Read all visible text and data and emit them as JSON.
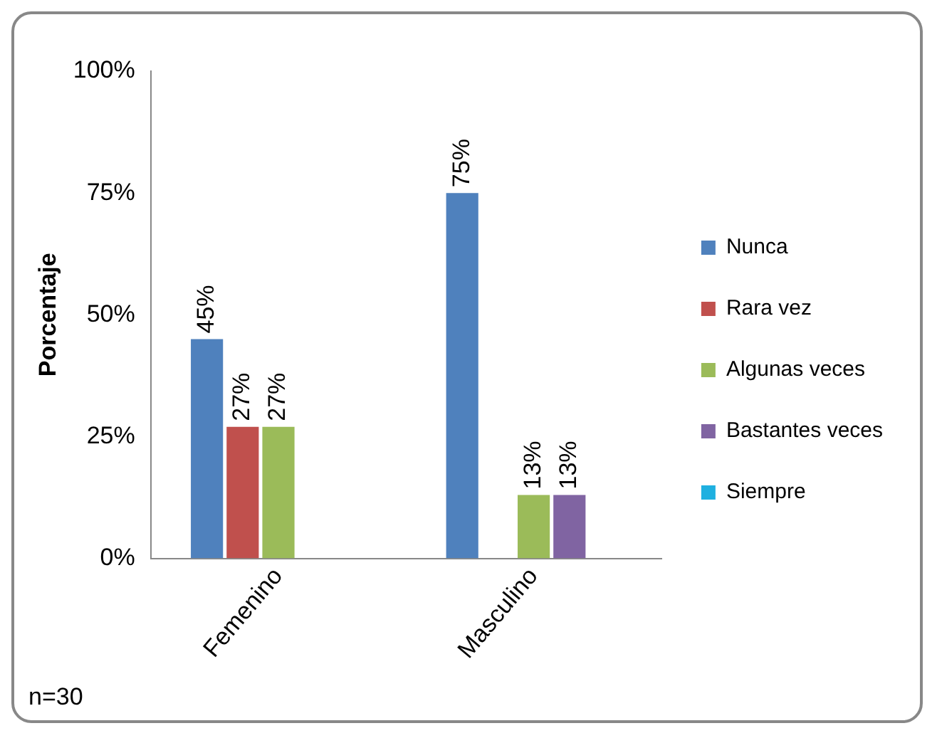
{
  "chart_data": {
    "type": "bar",
    "ylabel": "Porcentaje",
    "categories": [
      "Femenino",
      "Masculino"
    ],
    "series": [
      {
        "name": "Nunca",
        "color": "#4f81bd",
        "values": [
          45,
          75
        ],
        "value_labels": [
          "45%",
          "75%"
        ]
      },
      {
        "name": "Rara vez",
        "color": "#c0504d",
        "values": [
          27,
          0
        ],
        "value_labels": [
          "27%",
          null
        ]
      },
      {
        "name": "Algunas veces",
        "color": "#9bbb59",
        "values": [
          27,
          13
        ],
        "value_labels": [
          "27%",
          "13%"
        ]
      },
      {
        "name": "Bastantes veces",
        "color": "#8064a2",
        "values": [
          0,
          13
        ],
        "value_labels": [
          null,
          "13%"
        ]
      },
      {
        "name": "Siempre",
        "color": "#1fb0e0",
        "values": [
          0,
          0
        ],
        "value_labels": [
          null,
          null
        ]
      }
    ],
    "ylim": [
      0,
      100
    ],
    "yticks": [
      {
        "value": 0,
        "label": "0%"
      },
      {
        "value": 25,
        "label": "25%"
      },
      {
        "value": 50,
        "label": "50%"
      },
      {
        "value": 75,
        "label": "75%"
      },
      {
        "value": 100,
        "label": "100%"
      }
    ],
    "legend": "right",
    "annotations": [
      "n=30"
    ]
  }
}
